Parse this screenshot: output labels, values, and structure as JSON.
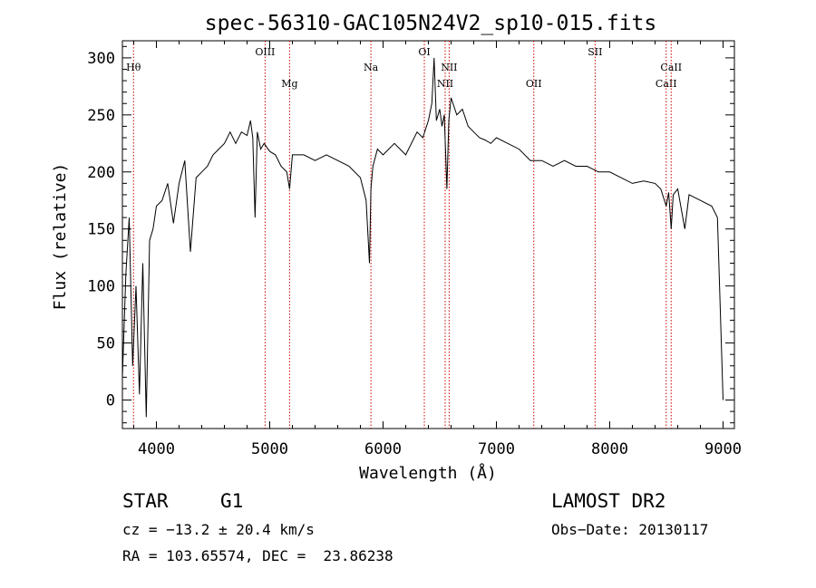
{
  "chart_data": {
    "type": "line",
    "title": "spec-56310-GAC105N24V2_sp10-015.fits",
    "xlabel": "Wavelength (Å)",
    "ylabel": "Flux (relative)",
    "xlim": [
      3700,
      9100
    ],
    "ylim": [
      -25,
      315
    ],
    "xticks": [
      4000,
      5000,
      6000,
      7000,
      8000,
      9000
    ],
    "yticks": [
      0,
      50,
      100,
      150,
      200,
      250,
      300
    ],
    "grid": false,
    "line_color": "#000000",
    "marker_color": "#cc0000",
    "series": [
      {
        "x": [
          3700,
          3730,
          3760,
          3790,
          3820,
          3850,
          3880,
          3910,
          3940,
          3970,
          4000,
          4050,
          4100,
          4150,
          4200,
          4250,
          4300,
          4350,
          4400,
          4450,
          4500,
          4550,
          4600,
          4650,
          4700,
          4750,
          4800,
          4830,
          4850,
          4870,
          4890,
          4920,
          4950,
          5000,
          5050,
          5100,
          5150,
          5175,
          5200,
          5300,
          5400,
          5500,
          5600,
          5700,
          5800,
          5850,
          5880,
          5893,
          5910,
          5950,
          6000,
          6100,
          6200,
          6300,
          6350,
          6400,
          6430,
          6450,
          6470,
          6500,
          6520,
          6540,
          6563,
          6580,
          6600,
          6650,
          6700,
          6750,
          6800,
          6850,
          6900,
          6950,
          7000,
          7100,
          7200,
          7300,
          7400,
          7500,
          7600,
          7700,
          7800,
          7900,
          8000,
          8100,
          8200,
          8300,
          8400,
          8450,
          8498,
          8520,
          8542,
          8560,
          8600,
          8662,
          8700,
          8800,
          8900,
          8950,
          9000
        ],
        "y": [
          20,
          110,
          160,
          30,
          100,
          5,
          120,
          -15,
          140,
          150,
          170,
          175,
          190,
          155,
          190,
          210,
          130,
          195,
          200,
          205,
          215,
          220,
          225,
          235,
          225,
          235,
          232,
          245,
          230,
          160,
          235,
          220,
          225,
          218,
          215,
          205,
          200,
          185,
          215,
          215,
          210,
          215,
          210,
          205,
          195,
          175,
          120,
          185,
          205,
          220,
          215,
          225,
          215,
          235,
          230,
          245,
          260,
          300,
          245,
          255,
          240,
          250,
          185,
          245,
          265,
          250,
          255,
          240,
          235,
          230,
          228,
          225,
          230,
          225,
          220,
          210,
          210,
          205,
          210,
          205,
          205,
          200,
          200,
          195,
          190,
          192,
          190,
          185,
          170,
          182,
          150,
          180,
          185,
          150,
          180,
          175,
          170,
          160,
          0
        ]
      }
    ],
    "lines": [
      {
        "label": "Hθ",
        "x": 3798,
        "row": 2
      },
      {
        "label": "OIII",
        "x": 4959,
        "row": 1
      },
      {
        "label": "Mg",
        "x": 5175,
        "row": 3
      },
      {
        "label": "Na",
        "x": 5893,
        "row": 2
      },
      {
        "label": "OI",
        "x": 6364,
        "row": 1
      },
      {
        "label": "NII",
        "x": 6548,
        "row": 3
      },
      {
        "label": "NII",
        "x": 6583,
        "row": 2
      },
      {
        "label": "OII",
        "x": 7330,
        "row": 3
      },
      {
        "label": "SII",
        "x": 7871,
        "row": 1
      },
      {
        "label": "CaII",
        "x": 8498,
        "row": 3
      },
      {
        "label": "CaII",
        "x": 8542,
        "row": 2
      }
    ]
  },
  "footer": {
    "object_class": "STAR",
    "subclass": "G1",
    "survey": "LAMOST DR2",
    "cz": "cz = −13.2 ± 20.4 km/s",
    "obs_date": "Obs−Date: 20130117",
    "coords": "RA = 103.65574, DEC =  23.86238"
  }
}
